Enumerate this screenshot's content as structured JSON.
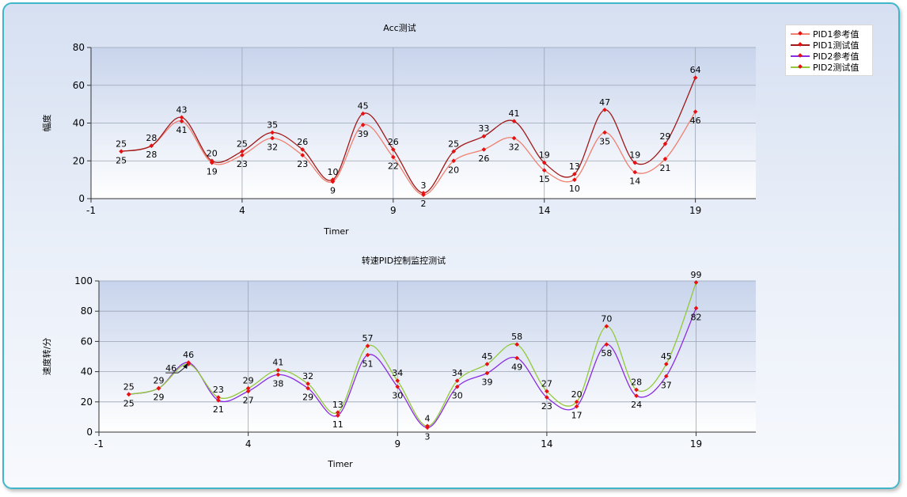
{
  "chart_data": [
    {
      "type": "line",
      "title": "Acc测试",
      "xlabel": "Timer",
      "ylabel": "幅度",
      "xlim": [
        -1,
        21
      ],
      "ylim": [
        0,
        80
      ],
      "xticks": [
        -1,
        4,
        9,
        14,
        19
      ],
      "yticks": [
        0,
        20,
        40,
        60,
        80
      ],
      "grid": true,
      "x": [
        0,
        1,
        2,
        3,
        4,
        5,
        6,
        7,
        8,
        9,
        10,
        11,
        12,
        13,
        14,
        15,
        16,
        17,
        18,
        19
      ],
      "series": [
        {
          "name": "PID1参考值",
          "color": "#f08070",
          "values": [
            25,
            28,
            41,
            19,
            23,
            32,
            23,
            9,
            39,
            22,
            2,
            20,
            26,
            32,
            15,
            10,
            35,
            14,
            21,
            46
          ]
        },
        {
          "name": "PID1测试值",
          "color": "#a01818",
          "values": [
            25,
            28,
            43,
            20,
            25,
            35,
            26,
            10,
            45,
            26,
            3,
            25,
            33,
            41,
            19,
            13,
            47,
            19,
            29,
            64
          ]
        }
      ]
    },
    {
      "type": "line",
      "title": "转速PID控制监控测试",
      "xlabel": "Timer",
      "ylabel": "速度转/分",
      "xlim": [
        -1,
        21
      ],
      "ylim": [
        0,
        100
      ],
      "xticks": [
        -1,
        4,
        9,
        14,
        19
      ],
      "yticks": [
        0,
        20,
        40,
        60,
        80,
        100
      ],
      "grid": true,
      "x": [
        0,
        1,
        2,
        3,
        4,
        5,
        6,
        7,
        8,
        9,
        10,
        11,
        12,
        13,
        14,
        15,
        16,
        17,
        18,
        19
      ],
      "series": [
        {
          "name": "PID2参考值",
          "color": "#8a2be2",
          "values": [
            25,
            29,
            46,
            21,
            27,
            38,
            29,
            11,
            51,
            30,
            3,
            30,
            39,
            49,
            23,
            17,
            58,
            24,
            37,
            82
          ]
        },
        {
          "name": "PID2测试值",
          "color": "#92c83a",
          "values": [
            25,
            29,
            45,
            23,
            29,
            41,
            32,
            13,
            57,
            34,
            4,
            34,
            45,
            58,
            27,
            20,
            70,
            28,
            45,
            99
          ]
        }
      ],
      "annotation": {
        "text": "46",
        "x": 2,
        "y": 46
      }
    }
  ],
  "legend": {
    "placement": "top-right",
    "items": [
      {
        "label": "PID1参考值",
        "color": "#f08070"
      },
      {
        "label": "PID1测试值",
        "color": "#a01818"
      },
      {
        "label": "PID2参考值",
        "color": "#8a2be2"
      },
      {
        "label": "PID2测试值",
        "color": "#92c83a"
      }
    ]
  },
  "colors": {
    "border": "#3fb7c9",
    "marker": "#e81010",
    "plot_bg_top": "#c8d4ec",
    "plot_bg_bottom": "#ffffff"
  }
}
